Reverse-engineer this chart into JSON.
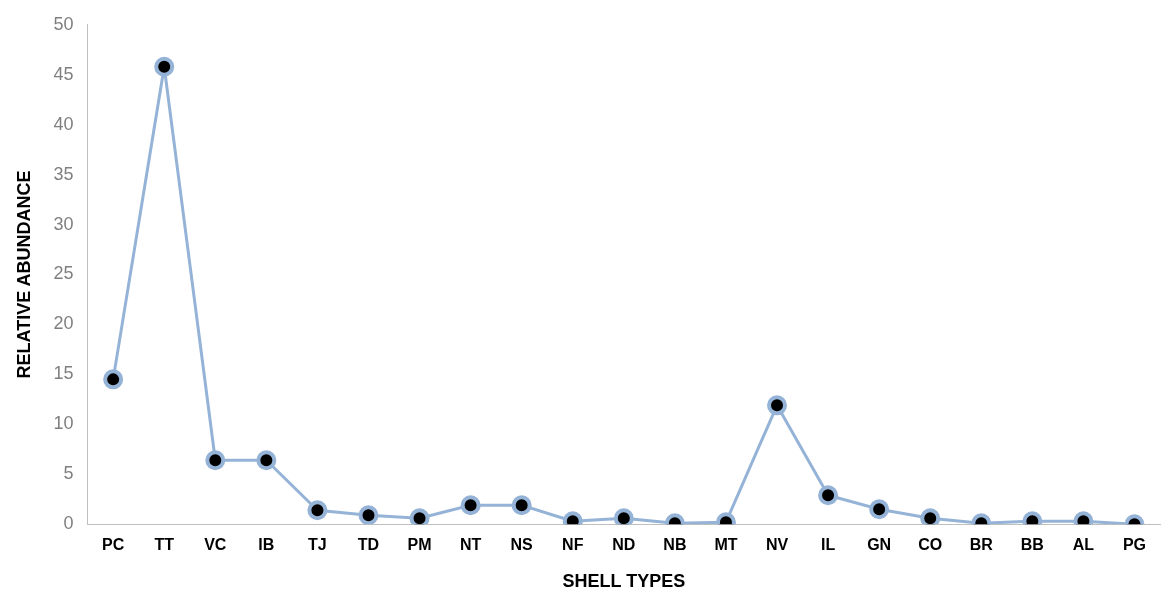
{
  "chart_data": {
    "type": "line",
    "xlabel": "SHELL TYPES",
    "ylabel": "RELATIVE ABUNDANCE",
    "categories": [
      "PC",
      "TT",
      "VC",
      "IB",
      "TJ",
      "TD",
      "PM",
      "NT",
      "NS",
      "NF",
      "ND",
      "NB",
      "MT",
      "NV",
      "IL",
      "GN",
      "CO",
      "BR",
      "BB",
      "AL",
      "PG"
    ],
    "series": [
      {
        "color": "#95b3d7",
        "values": [
          14.5,
          45.8,
          6.4,
          6.4,
          1.4,
          0.9,
          0.6,
          1.9,
          1.9,
          0.3,
          0.6,
          0.1,
          0.2,
          11.9,
          2.9,
          1.5,
          0.6,
          0.1,
          0.3,
          0.3,
          0
        ]
      }
    ],
    "ylim": [
      0,
      50
    ],
    "yticks": [
      0,
      5,
      10,
      15,
      20,
      25,
      30,
      35,
      40,
      45,
      50
    ],
    "grid": false,
    "legend": false,
    "marker": "circle",
    "line_style": "solid"
  }
}
